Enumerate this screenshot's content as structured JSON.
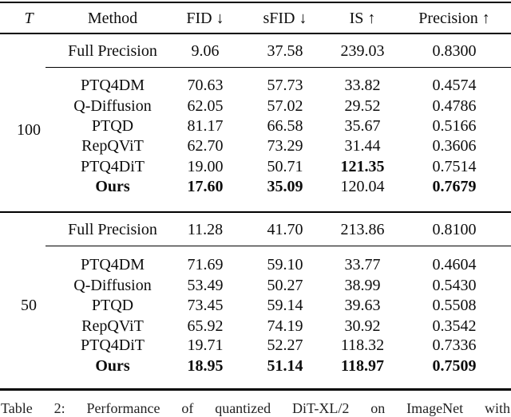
{
  "table": {
    "header": [
      "T",
      "Method",
      "FID ↓",
      "sFID ↓",
      "IS ↑",
      "Precision ↑"
    ],
    "sections": [
      {
        "t": "100",
        "full_precision": {
          "method": "Full Precision",
          "method_bold": false,
          "values": [
            "9.06",
            "37.58",
            "239.03",
            "0.8300"
          ],
          "bold": [
            false,
            false,
            false,
            false
          ]
        },
        "rows": [
          {
            "method": "PTQ4DM",
            "method_bold": false,
            "values": [
              "70.63",
              "57.73",
              "33.82",
              "0.4574"
            ],
            "bold": [
              false,
              false,
              false,
              false
            ]
          },
          {
            "method": "Q-Diffusion",
            "method_bold": false,
            "values": [
              "62.05",
              "57.02",
              "29.52",
              "0.4786"
            ],
            "bold": [
              false,
              false,
              false,
              false
            ]
          },
          {
            "method": "PTQD",
            "method_bold": false,
            "values": [
              "81.17",
              "66.58",
              "35.67",
              "0.5166"
            ],
            "bold": [
              false,
              false,
              false,
              false
            ]
          },
          {
            "method": "RepQViT",
            "method_bold": false,
            "values": [
              "62.70",
              "73.29",
              "31.44",
              "0.3606"
            ],
            "bold": [
              false,
              false,
              false,
              false
            ]
          },
          {
            "method": "PTQ4DiT",
            "method_bold": false,
            "values": [
              "19.00",
              "50.71",
              "121.35",
              "0.7514"
            ],
            "bold": [
              false,
              false,
              true,
              false
            ]
          },
          {
            "method": "Ours",
            "method_bold": true,
            "values": [
              "17.60",
              "35.09",
              "120.04",
              "0.7679"
            ],
            "bold": [
              true,
              true,
              false,
              true
            ]
          }
        ]
      },
      {
        "t": "50",
        "full_precision": {
          "method": "Full Precision",
          "method_bold": false,
          "values": [
            "11.28",
            "41.70",
            "213.86",
            "0.8100"
          ],
          "bold": [
            false,
            false,
            false,
            false
          ]
        },
        "rows": [
          {
            "method": "PTQ4DM",
            "method_bold": false,
            "values": [
              "71.69",
              "59.10",
              "33.77",
              "0.4604"
            ],
            "bold": [
              false,
              false,
              false,
              false
            ]
          },
          {
            "method": "Q-Diffusion",
            "method_bold": false,
            "values": [
              "53.49",
              "50.27",
              "38.99",
              "0.5430"
            ],
            "bold": [
              false,
              false,
              false,
              false
            ]
          },
          {
            "method": "PTQD",
            "method_bold": false,
            "values": [
              "73.45",
              "59.14",
              "39.63",
              "0.5508"
            ],
            "bold": [
              false,
              false,
              false,
              false
            ]
          },
          {
            "method": "RepQViT",
            "method_bold": false,
            "values": [
              "65.92",
              "74.19",
              "30.92",
              "0.3542"
            ],
            "bold": [
              false,
              false,
              false,
              false
            ]
          },
          {
            "method": "PTQ4DiT",
            "method_bold": false,
            "values": [
              "19.71",
              "52.27",
              "118.32",
              "0.7336"
            ],
            "bold": [
              false,
              false,
              false,
              false
            ]
          },
          {
            "method": "Ours",
            "method_bold": true,
            "values": [
              "18.95",
              "51.14",
              "118.97",
              "0.7509"
            ],
            "bold": [
              true,
              true,
              true,
              true
            ]
          }
        ]
      }
    ]
  },
  "caption": "Table 2: Performance of quantized DiT-XL/2 on ImageNet with"
}
